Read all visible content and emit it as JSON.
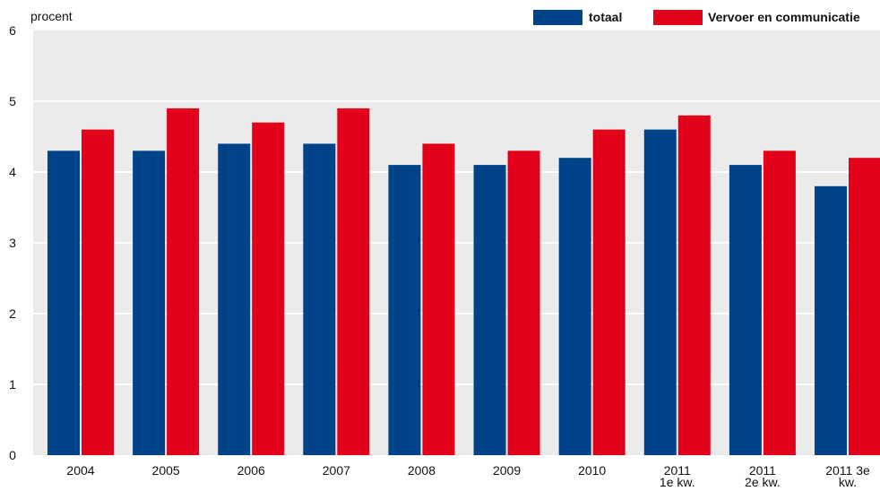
{
  "chart_data": {
    "type": "bar",
    "ylabel": "procent",
    "ylim": [
      0,
      6
    ],
    "yticks": [
      0,
      1,
      2,
      3,
      4,
      5,
      6
    ],
    "grid": true,
    "legend_position": "top-right",
    "categories": [
      [
        "2004"
      ],
      [
        "2005"
      ],
      [
        "2006"
      ],
      [
        "2007"
      ],
      [
        "2008"
      ],
      [
        "2009"
      ],
      [
        "2010"
      ],
      [
        "2011",
        "1e kw."
      ],
      [
        "2011",
        "2e kw."
      ],
      [
        "2011 3e",
        "kw."
      ]
    ],
    "series": [
      {
        "name": "totaal",
        "color": "#004388",
        "values": [
          4.3,
          4.3,
          4.4,
          4.4,
          4.1,
          4.1,
          4.2,
          4.6,
          4.1,
          3.8
        ]
      },
      {
        "name": "Vervoer en communicatie",
        "color": "#e2001a",
        "values": [
          4.6,
          4.9,
          4.7,
          4.9,
          4.4,
          4.3,
          4.6,
          4.8,
          4.3,
          4.2
        ]
      }
    ],
    "plot_background": "#ebebeb",
    "grid_color": "#ffffff"
  }
}
